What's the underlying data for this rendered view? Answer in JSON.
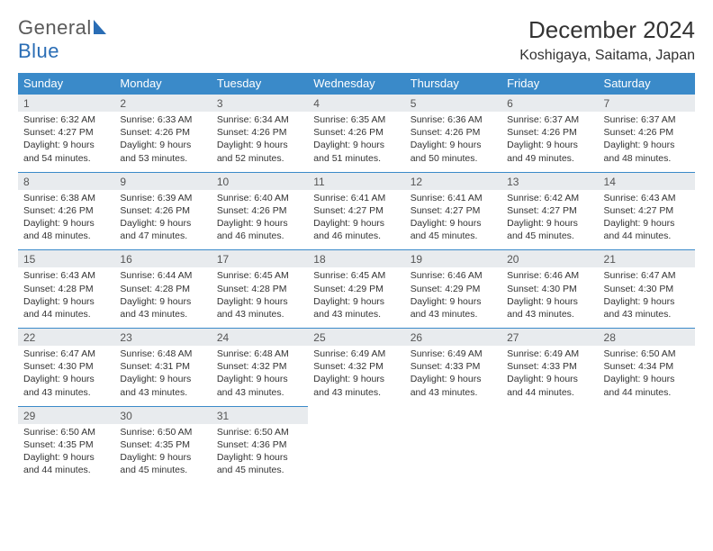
{
  "logo": {
    "text1": "General",
    "text2": "Blue"
  },
  "header": {
    "month_title": "December 2024",
    "location": "Koshigaya, Saitama, Japan"
  },
  "colors": {
    "header_bg": "#3a8ac9",
    "header_text": "#ffffff",
    "daynum_bg": "#e8ebee",
    "daynum_border": "#3a8ac9",
    "body_text": "#333333",
    "logo_gray": "#5a5a5a",
    "logo_blue": "#2a6db5"
  },
  "day_names": [
    "Sunday",
    "Monday",
    "Tuesday",
    "Wednesday",
    "Thursday",
    "Friday",
    "Saturday"
  ],
  "weeks": [
    [
      {
        "n": "1",
        "sr": "Sunrise: 6:32 AM",
        "ss": "Sunset: 4:27 PM",
        "d1": "Daylight: 9 hours",
        "d2": "and 54 minutes."
      },
      {
        "n": "2",
        "sr": "Sunrise: 6:33 AM",
        "ss": "Sunset: 4:26 PM",
        "d1": "Daylight: 9 hours",
        "d2": "and 53 minutes."
      },
      {
        "n": "3",
        "sr": "Sunrise: 6:34 AM",
        "ss": "Sunset: 4:26 PM",
        "d1": "Daylight: 9 hours",
        "d2": "and 52 minutes."
      },
      {
        "n": "4",
        "sr": "Sunrise: 6:35 AM",
        "ss": "Sunset: 4:26 PM",
        "d1": "Daylight: 9 hours",
        "d2": "and 51 minutes."
      },
      {
        "n": "5",
        "sr": "Sunrise: 6:36 AM",
        "ss": "Sunset: 4:26 PM",
        "d1": "Daylight: 9 hours",
        "d2": "and 50 minutes."
      },
      {
        "n": "6",
        "sr": "Sunrise: 6:37 AM",
        "ss": "Sunset: 4:26 PM",
        "d1": "Daylight: 9 hours",
        "d2": "and 49 minutes."
      },
      {
        "n": "7",
        "sr": "Sunrise: 6:37 AM",
        "ss": "Sunset: 4:26 PM",
        "d1": "Daylight: 9 hours",
        "d2": "and 48 minutes."
      }
    ],
    [
      {
        "n": "8",
        "sr": "Sunrise: 6:38 AM",
        "ss": "Sunset: 4:26 PM",
        "d1": "Daylight: 9 hours",
        "d2": "and 48 minutes."
      },
      {
        "n": "9",
        "sr": "Sunrise: 6:39 AM",
        "ss": "Sunset: 4:26 PM",
        "d1": "Daylight: 9 hours",
        "d2": "and 47 minutes."
      },
      {
        "n": "10",
        "sr": "Sunrise: 6:40 AM",
        "ss": "Sunset: 4:26 PM",
        "d1": "Daylight: 9 hours",
        "d2": "and 46 minutes."
      },
      {
        "n": "11",
        "sr": "Sunrise: 6:41 AM",
        "ss": "Sunset: 4:27 PM",
        "d1": "Daylight: 9 hours",
        "d2": "and 46 minutes."
      },
      {
        "n": "12",
        "sr": "Sunrise: 6:41 AM",
        "ss": "Sunset: 4:27 PM",
        "d1": "Daylight: 9 hours",
        "d2": "and 45 minutes."
      },
      {
        "n": "13",
        "sr": "Sunrise: 6:42 AM",
        "ss": "Sunset: 4:27 PM",
        "d1": "Daylight: 9 hours",
        "d2": "and 45 minutes."
      },
      {
        "n": "14",
        "sr": "Sunrise: 6:43 AM",
        "ss": "Sunset: 4:27 PM",
        "d1": "Daylight: 9 hours",
        "d2": "and 44 minutes."
      }
    ],
    [
      {
        "n": "15",
        "sr": "Sunrise: 6:43 AM",
        "ss": "Sunset: 4:28 PM",
        "d1": "Daylight: 9 hours",
        "d2": "and 44 minutes."
      },
      {
        "n": "16",
        "sr": "Sunrise: 6:44 AM",
        "ss": "Sunset: 4:28 PM",
        "d1": "Daylight: 9 hours",
        "d2": "and 43 minutes."
      },
      {
        "n": "17",
        "sr": "Sunrise: 6:45 AM",
        "ss": "Sunset: 4:28 PM",
        "d1": "Daylight: 9 hours",
        "d2": "and 43 minutes."
      },
      {
        "n": "18",
        "sr": "Sunrise: 6:45 AM",
        "ss": "Sunset: 4:29 PM",
        "d1": "Daylight: 9 hours",
        "d2": "and 43 minutes."
      },
      {
        "n": "19",
        "sr": "Sunrise: 6:46 AM",
        "ss": "Sunset: 4:29 PM",
        "d1": "Daylight: 9 hours",
        "d2": "and 43 minutes."
      },
      {
        "n": "20",
        "sr": "Sunrise: 6:46 AM",
        "ss": "Sunset: 4:30 PM",
        "d1": "Daylight: 9 hours",
        "d2": "and 43 minutes."
      },
      {
        "n": "21",
        "sr": "Sunrise: 6:47 AM",
        "ss": "Sunset: 4:30 PM",
        "d1": "Daylight: 9 hours",
        "d2": "and 43 minutes."
      }
    ],
    [
      {
        "n": "22",
        "sr": "Sunrise: 6:47 AM",
        "ss": "Sunset: 4:30 PM",
        "d1": "Daylight: 9 hours",
        "d2": "and 43 minutes."
      },
      {
        "n": "23",
        "sr": "Sunrise: 6:48 AM",
        "ss": "Sunset: 4:31 PM",
        "d1": "Daylight: 9 hours",
        "d2": "and 43 minutes."
      },
      {
        "n": "24",
        "sr": "Sunrise: 6:48 AM",
        "ss": "Sunset: 4:32 PM",
        "d1": "Daylight: 9 hours",
        "d2": "and 43 minutes."
      },
      {
        "n": "25",
        "sr": "Sunrise: 6:49 AM",
        "ss": "Sunset: 4:32 PM",
        "d1": "Daylight: 9 hours",
        "d2": "and 43 minutes."
      },
      {
        "n": "26",
        "sr": "Sunrise: 6:49 AM",
        "ss": "Sunset: 4:33 PM",
        "d1": "Daylight: 9 hours",
        "d2": "and 43 minutes."
      },
      {
        "n": "27",
        "sr": "Sunrise: 6:49 AM",
        "ss": "Sunset: 4:33 PM",
        "d1": "Daylight: 9 hours",
        "d2": "and 44 minutes."
      },
      {
        "n": "28",
        "sr": "Sunrise: 6:50 AM",
        "ss": "Sunset: 4:34 PM",
        "d1": "Daylight: 9 hours",
        "d2": "and 44 minutes."
      }
    ],
    [
      {
        "n": "29",
        "sr": "Sunrise: 6:50 AM",
        "ss": "Sunset: 4:35 PM",
        "d1": "Daylight: 9 hours",
        "d2": "and 44 minutes."
      },
      {
        "n": "30",
        "sr": "Sunrise: 6:50 AM",
        "ss": "Sunset: 4:35 PM",
        "d1": "Daylight: 9 hours",
        "d2": "and 45 minutes."
      },
      {
        "n": "31",
        "sr": "Sunrise: 6:50 AM",
        "ss": "Sunset: 4:36 PM",
        "d1": "Daylight: 9 hours",
        "d2": "and 45 minutes."
      },
      null,
      null,
      null,
      null
    ]
  ]
}
